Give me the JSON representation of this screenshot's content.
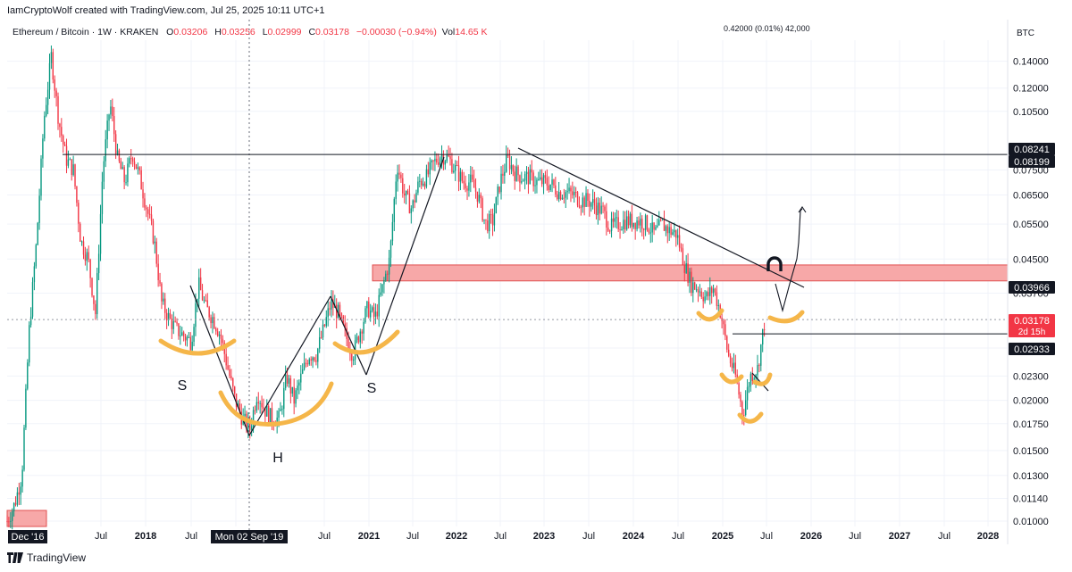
{
  "header": {
    "credit": "IamCryptoWolf created with TradingView.com, Jul 25, 2025 10:11 UTC+1"
  },
  "legend": {
    "symbol": "Ethereum / Bitcoin · 1W · KRAKEN",
    "open_label": "O",
    "open": "0.03206",
    "high_label": "H",
    "high": "0.03256",
    "low_label": "L",
    "low": "0.02999",
    "close_label": "C",
    "close": "0.03178",
    "change": "−0.00030 (−0.94%)",
    "vol_label": "Vol",
    "vol": "14.65 K"
  },
  "crosshair_readout": "0.42000 (0.01%) 42,000",
  "footer": {
    "brand": "TradingView"
  },
  "colors": {
    "up": "#089981",
    "down": "#f23645",
    "zone": "#f7a8a8",
    "zone_border": "#e05050",
    "annotation": "#f5b649",
    "text": "#131722",
    "grid": "#f0f3fa"
  },
  "chart_data": {
    "type": "candlestick",
    "title": "Ethereum / Bitcoin · 1W · KRAKEN",
    "currency_label": "BTC",
    "y_scale": "log",
    "ylim": [
      0.0097,
      0.158
    ],
    "y_ticks": [
      "0.14000",
      "0.12000",
      "0.10500",
      "0.07500",
      "0.06500",
      "0.05500",
      "0.04500",
      "0.03700",
      "0.02700",
      "0.02300",
      "0.02000",
      "0.01750",
      "0.01500",
      "0.01300",
      "0.01140",
      "0.01000"
    ],
    "x_ticks": [
      "Dec '16",
      "Jul",
      "2018",
      "Jul",
      "2019",
      "Mon 02 Sep '19",
      "Jul",
      "2021",
      "Jul",
      "2022",
      "Jul",
      "2023",
      "Jul",
      "2024",
      "Jul",
      "2025",
      "Jul",
      "2026",
      "Jul",
      "2027",
      "Jul",
      "2028"
    ],
    "price_tags": [
      {
        "value": "0.08241",
        "style": "dark"
      },
      {
        "value": "0.08199",
        "style": "dark"
      },
      {
        "value": "0.03966",
        "style": "dark"
      },
      {
        "value": "0.03178",
        "sub": "2d 15h",
        "style": "red"
      },
      {
        "value": "0.02933",
        "style": "dark"
      }
    ],
    "pattern_labels": [
      "S",
      "H",
      "S"
    ],
    "series_path": [
      [
        "2016-12",
        0.01
      ],
      [
        "2017-01",
        0.011
      ],
      [
        "2017-02",
        0.013
      ],
      [
        "2017-03",
        0.03
      ],
      [
        "2017-04",
        0.05
      ],
      [
        "2017-05",
        0.1
      ],
      [
        "2017-06",
        0.144
      ],
      [
        "2017-07",
        0.1
      ],
      [
        "2017-08",
        0.08
      ],
      [
        "2017-09",
        0.075
      ],
      [
        "2017-10",
        0.05
      ],
      [
        "2017-11",
        0.045
      ],
      [
        "2017-12",
        0.033
      ],
      [
        "2018-01",
        0.075
      ],
      [
        "2018-02",
        0.11
      ],
      [
        "2018-03",
        0.08
      ],
      [
        "2018-04",
        0.07
      ],
      [
        "2018-05",
        0.083
      ],
      [
        "2018-06",
        0.072
      ],
      [
        "2018-07",
        0.06
      ],
      [
        "2018-08",
        0.05
      ],
      [
        "2018-09",
        0.035
      ],
      [
        "2018-10",
        0.032
      ],
      [
        "2018-11",
        0.03
      ],
      [
        "2018-12",
        0.029
      ],
      [
        "2019-01",
        0.028
      ],
      [
        "2019-02",
        0.039
      ],
      [
        "2019-03",
        0.034
      ],
      [
        "2019-04",
        0.032
      ],
      [
        "2019-05",
        0.029
      ],
      [
        "2019-06",
        0.024
      ],
      [
        "2019-07",
        0.02
      ],
      [
        "2019-08",
        0.018
      ],
      [
        "2019-09",
        0.017
      ],
      [
        "2019-10",
        0.021
      ],
      [
        "2019-11",
        0.019
      ],
      [
        "2019-12",
        0.018
      ],
      [
        "2020-01",
        0.018
      ],
      [
        "2020-02",
        0.023
      ],
      [
        "2020-03",
        0.02
      ],
      [
        "2020-04",
        0.023
      ],
      [
        "2020-05",
        0.026
      ],
      [
        "2020-06",
        0.026
      ],
      [
        "2020-07",
        0.03
      ],
      [
        "2020-08",
        0.035
      ],
      [
        "2020-09",
        0.033
      ],
      [
        "2020-10",
        0.029
      ],
      [
        "2020-11",
        0.026
      ],
      [
        "2020-12",
        0.03
      ],
      [
        "2021-01",
        0.034
      ],
      [
        "2021-02",
        0.032
      ],
      [
        "2021-03",
        0.038
      ],
      [
        "2021-04",
        0.045
      ],
      [
        "2021-05",
        0.078
      ],
      [
        "2021-06",
        0.065
      ],
      [
        "2021-07",
        0.06
      ],
      [
        "2021-08",
        0.07
      ],
      [
        "2021-09",
        0.072
      ],
      [
        "2021-10",
        0.078
      ],
      [
        "2021-11",
        0.082
      ],
      [
        "2021-12",
        0.08
      ],
      [
        "2022-01",
        0.075
      ],
      [
        "2022-02",
        0.07
      ],
      [
        "2022-03",
        0.07
      ],
      [
        "2022-04",
        0.065
      ],
      [
        "2022-05",
        0.055
      ],
      [
        "2022-06",
        0.056
      ],
      [
        "2022-07",
        0.07
      ],
      [
        "2022-08",
        0.08
      ],
      [
        "2022-09",
        0.074
      ],
      [
        "2022-10",
        0.072
      ],
      [
        "2022-11",
        0.072
      ],
      [
        "2022-12",
        0.07
      ],
      [
        "2023-01",
        0.07
      ],
      [
        "2023-02",
        0.069
      ],
      [
        "2023-03",
        0.066
      ],
      [
        "2023-04",
        0.066
      ],
      [
        "2023-05",
        0.065
      ],
      [
        "2023-06",
        0.063
      ],
      [
        "2023-07",
        0.063
      ],
      [
        "2023-08",
        0.061
      ],
      [
        "2023-09",
        0.059
      ],
      [
        "2023-10",
        0.054
      ],
      [
        "2023-11",
        0.055
      ],
      [
        "2023-12",
        0.056
      ],
      [
        "2024-01",
        0.056
      ],
      [
        "2024-02",
        0.056
      ],
      [
        "2024-03",
        0.055
      ],
      [
        "2024-04",
        0.052
      ],
      [
        "2024-05",
        0.055
      ],
      [
        "2024-06",
        0.053
      ],
      [
        "2024-07",
        0.052
      ],
      [
        "2024-08",
        0.044
      ],
      [
        "2024-09",
        0.039
      ],
      [
        "2024-10",
        0.038
      ],
      [
        "2024-11",
        0.036
      ],
      [
        "2024-12",
        0.038
      ],
      [
        "2025-01",
        0.033
      ],
      [
        "2025-02",
        0.026
      ],
      [
        "2025-03",
        0.023
      ],
      [
        "2025-04",
        0.0185
      ],
      [
        "2025-05",
        0.023
      ],
      [
        "2025-06",
        0.024
      ],
      [
        "2025-07",
        0.0318
      ]
    ]
  }
}
